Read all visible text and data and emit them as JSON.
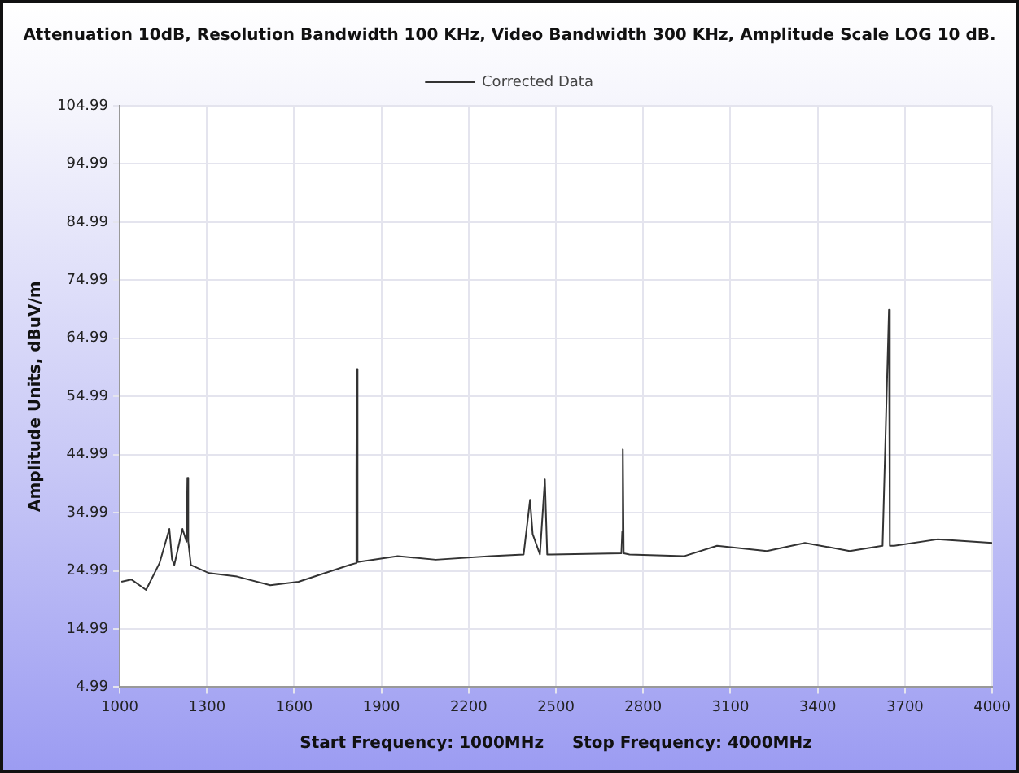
{
  "chart_data": {
    "type": "line",
    "title": "Attenuation 10dB, Resolution Bandwidth 100 KHz, Video Bandwidth 300 KHz, Amplitude Scale LOG 10 dB.",
    "xlabel": "Start Frequency: 1000MHz     Stop Frequency: 4000MHz",
    "ylabel": "Amplitude Units, dBuV/m",
    "series": [
      {
        "name": "Corrected Data",
        "color": "#333333",
        "x": [
          1006,
          1040,
          1091,
          1137,
          1171,
          1180,
          1188,
          1216,
          1230,
          1233,
          1236,
          1245,
          1307,
          1404,
          1518,
          1615,
          1706,
          1791,
          1812,
          1814,
          1815,
          1818,
          1956,
          2087,
          2275,
          2389,
          2411,
          2420,
          2445,
          2462,
          2470,
          2485,
          2725,
          2728,
          2730,
          2733,
          2753,
          2940,
          3054,
          3225,
          3356,
          3510,
          3623,
          3645,
          3648,
          3663,
          3811,
          4000
        ],
        "values": [
          23.1,
          23.5,
          21.7,
          26.3,
          32.2,
          27,
          26,
          32.2,
          30,
          41,
          30,
          26,
          24.6,
          24,
          22.5,
          23.1,
          24.6,
          26,
          26.3,
          42,
          59.7,
          26.5,
          27.5,
          26.9,
          27.5,
          27.8,
          37.2,
          31.3,
          27.8,
          40.7,
          27.8,
          27.8,
          28,
          31.7,
          45.9,
          28,
          27.8,
          27.5,
          29.3,
          28.4,
          29.8,
          28.4,
          29.3,
          69.9,
          29.3,
          29.3,
          30.4,
          29.8
        ]
      }
    ],
    "xlim": [
      1000,
      4000
    ],
    "xticks": [
      1000,
      1300,
      1600,
      1900,
      2200,
      2500,
      2800,
      3100,
      3400,
      3700,
      4000
    ],
    "ylim": [
      4.99,
      104.99
    ],
    "yticks": [
      4.99,
      14.99,
      24.99,
      34.99,
      44.99,
      54.99,
      64.99,
      74.99,
      84.99,
      94.99,
      104.99
    ],
    "grid": true,
    "legend": "top",
    "marker": "none",
    "line_style": "solid"
  }
}
